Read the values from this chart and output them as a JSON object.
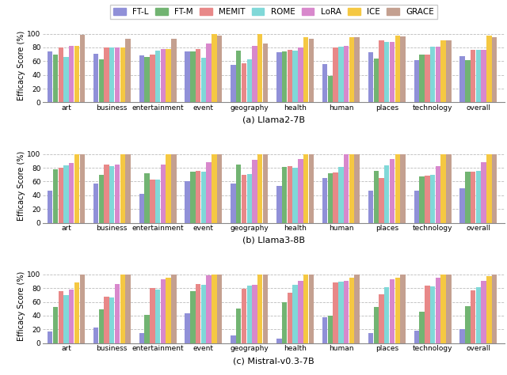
{
  "categories": [
    "art",
    "business",
    "entertainment",
    "event",
    "geography",
    "health",
    "human",
    "places",
    "technology",
    "overall"
  ],
  "methods": [
    "FT-L",
    "FT-M",
    "MEMIT",
    "ROME",
    "LoRA",
    "ICE",
    "GRACE"
  ],
  "colors": [
    "#9090d8",
    "#72b472",
    "#e88888",
    "#80d8d8",
    "#d888cc",
    "#f5c842",
    "#c4a090"
  ],
  "subtitles": [
    "(a) Llama2-7B",
    "(b) Llama3-8B",
    "(c) Mistral-v0.3-7B"
  ],
  "llama2_7b": {
    "FT-L": [
      74,
      71,
      68,
      74,
      55,
      73,
      56,
      73,
      62,
      67
    ],
    "FT-M": [
      69,
      63,
      66,
      74,
      75,
      74,
      39,
      64,
      70,
      61
    ],
    "MEMIT": [
      80,
      80,
      70,
      78,
      57,
      76,
      80,
      90,
      70,
      77
    ],
    "ROME": [
      66,
      80,
      75,
      65,
      63,
      75,
      81,
      88,
      81,
      76
    ],
    "LoRA": [
      82,
      80,
      78,
      86,
      82,
      80,
      82,
      88,
      81,
      76
    ],
    "ICE": [
      82,
      80,
      78,
      100,
      100,
      95,
      95,
      97,
      90,
      97
    ],
    "GRACE": [
      98,
      93,
      92,
      97,
      86,
      93,
      95,
      96,
      90,
      95
    ]
  },
  "llama3_8b": {
    "FT-L": [
      47,
      57,
      42,
      61,
      57,
      54,
      65,
      47,
      47,
      50
    ],
    "FT-M": [
      78,
      70,
      72,
      74,
      85,
      81,
      72,
      75,
      67,
      74
    ],
    "MEMIT": [
      80,
      85,
      63,
      75,
      70,
      82,
      73,
      65,
      69,
      74
    ],
    "ROME": [
      83,
      82,
      63,
      74,
      71,
      80,
      81,
      83,
      70,
      76
    ],
    "LoRA": [
      87,
      85,
      85,
      88,
      91,
      93,
      100,
      93,
      82,
      88
    ],
    "ICE": [
      100,
      100,
      100,
      100,
      100,
      100,
      100,
      100,
      100,
      100
    ],
    "GRACE": [
      100,
      100,
      100,
      100,
      100,
      100,
      100,
      100,
      100,
      100
    ]
  },
  "mistral_v03_7b": {
    "FT-L": [
      17,
      23,
      15,
      43,
      11,
      6,
      38,
      15,
      18,
      20
    ],
    "FT-M": [
      52,
      49,
      41,
      76,
      50,
      60,
      40,
      53,
      46,
      54
    ],
    "MEMIT": [
      76,
      67,
      80,
      86,
      79,
      73,
      88,
      71,
      84,
      77
    ],
    "ROME": [
      70,
      66,
      78,
      85,
      84,
      85,
      89,
      81,
      83,
      81
    ],
    "LoRA": [
      78,
      86,
      93,
      98,
      85,
      91,
      91,
      93,
      95,
      90
    ],
    "ICE": [
      88,
      100,
      95,
      100,
      100,
      100,
      95,
      95,
      100,
      97
    ],
    "GRACE": [
      100,
      100,
      100,
      100,
      100,
      100,
      100,
      100,
      100,
      100
    ]
  },
  "ylabel": "Efficacy Score (%)",
  "ylim": [
    0,
    108
  ],
  "yticks": [
    0,
    20,
    40,
    60,
    80,
    100
  ]
}
